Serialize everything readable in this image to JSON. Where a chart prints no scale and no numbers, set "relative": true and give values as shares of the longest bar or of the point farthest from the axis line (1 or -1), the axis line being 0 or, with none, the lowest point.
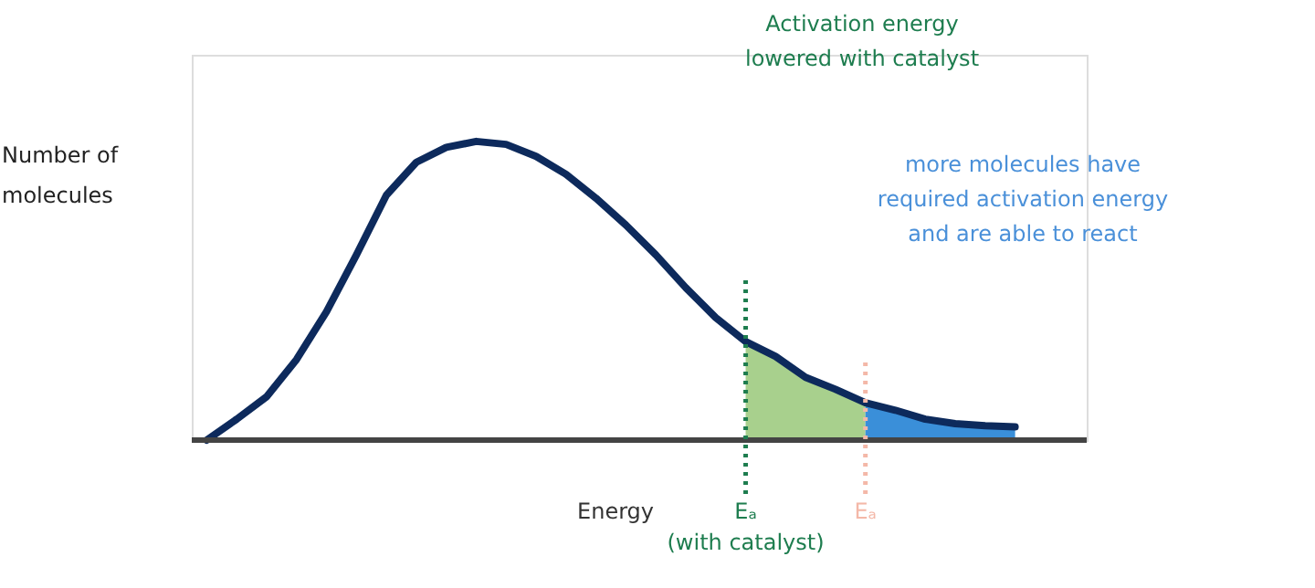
{
  "chart_data": {
    "type": "line",
    "relative": true,
    "xlabel": "Energy",
    "ylabel": "Number of\nmolecules",
    "tick_labels": false,
    "grid": false,
    "marker": "none",
    "categories": [
      null,
      null,
      null,
      null,
      null,
      null,
      null,
      null,
      null,
      null,
      null,
      null,
      null,
      null,
      null,
      null,
      null,
      null,
      null,
      null,
      null,
      null,
      null,
      null,
      null,
      null,
      null,
      null
    ],
    "series": [
      {
        "type": "area",
        "color": "#a8d08d",
        "values": [
          null,
          null,
          null,
          null,
          null,
          null,
          null,
          null,
          null,
          null,
          null,
          null,
          null,
          null,
          null,
          null,
          null,
          null,
          0.33,
          0.28,
          0.21,
          0.17,
          0.125,
          null,
          null,
          null,
          null,
          null
        ]
      },
      {
        "type": "area",
        "color": "#3a8fd9",
        "values": [
          null,
          null,
          null,
          null,
          null,
          null,
          null,
          null,
          null,
          null,
          null,
          null,
          null,
          null,
          null,
          null,
          null,
          null,
          null,
          null,
          null,
          null,
          0.125,
          0.1,
          0.07,
          0.055,
          0.048,
          0.044
        ]
      },
      {
        "color": "#0d2a5c",
        "line_style": "solid",
        "values": [
          0.0,
          0.07,
          0.145,
          0.27,
          0.43,
          0.62,
          0.82,
          0.93,
          0.98,
          1.0,
          0.99,
          0.95,
          0.89,
          0.81,
          0.72,
          0.62,
          0.51,
          0.41,
          0.33,
          0.28,
          0.21,
          0.17,
          0.125,
          0.1,
          0.07,
          0.055,
          0.048,
          0.044
        ]
      }
    ],
    "ref_lines": [
      {
        "axis": "x",
        "label": "Eₐ\n(with catalyst)",
        "color": "#1e7d4f",
        "line_style": "dotted"
      },
      {
        "axis": "x",
        "label": "Eₐ",
        "color": "#f4b8a8",
        "line_style": "dotted"
      }
    ],
    "annotations": [
      "Activation energy\nlowered with catalyst",
      "more molecules have\nrequired activation energy\nand are able to react"
    ]
  }
}
